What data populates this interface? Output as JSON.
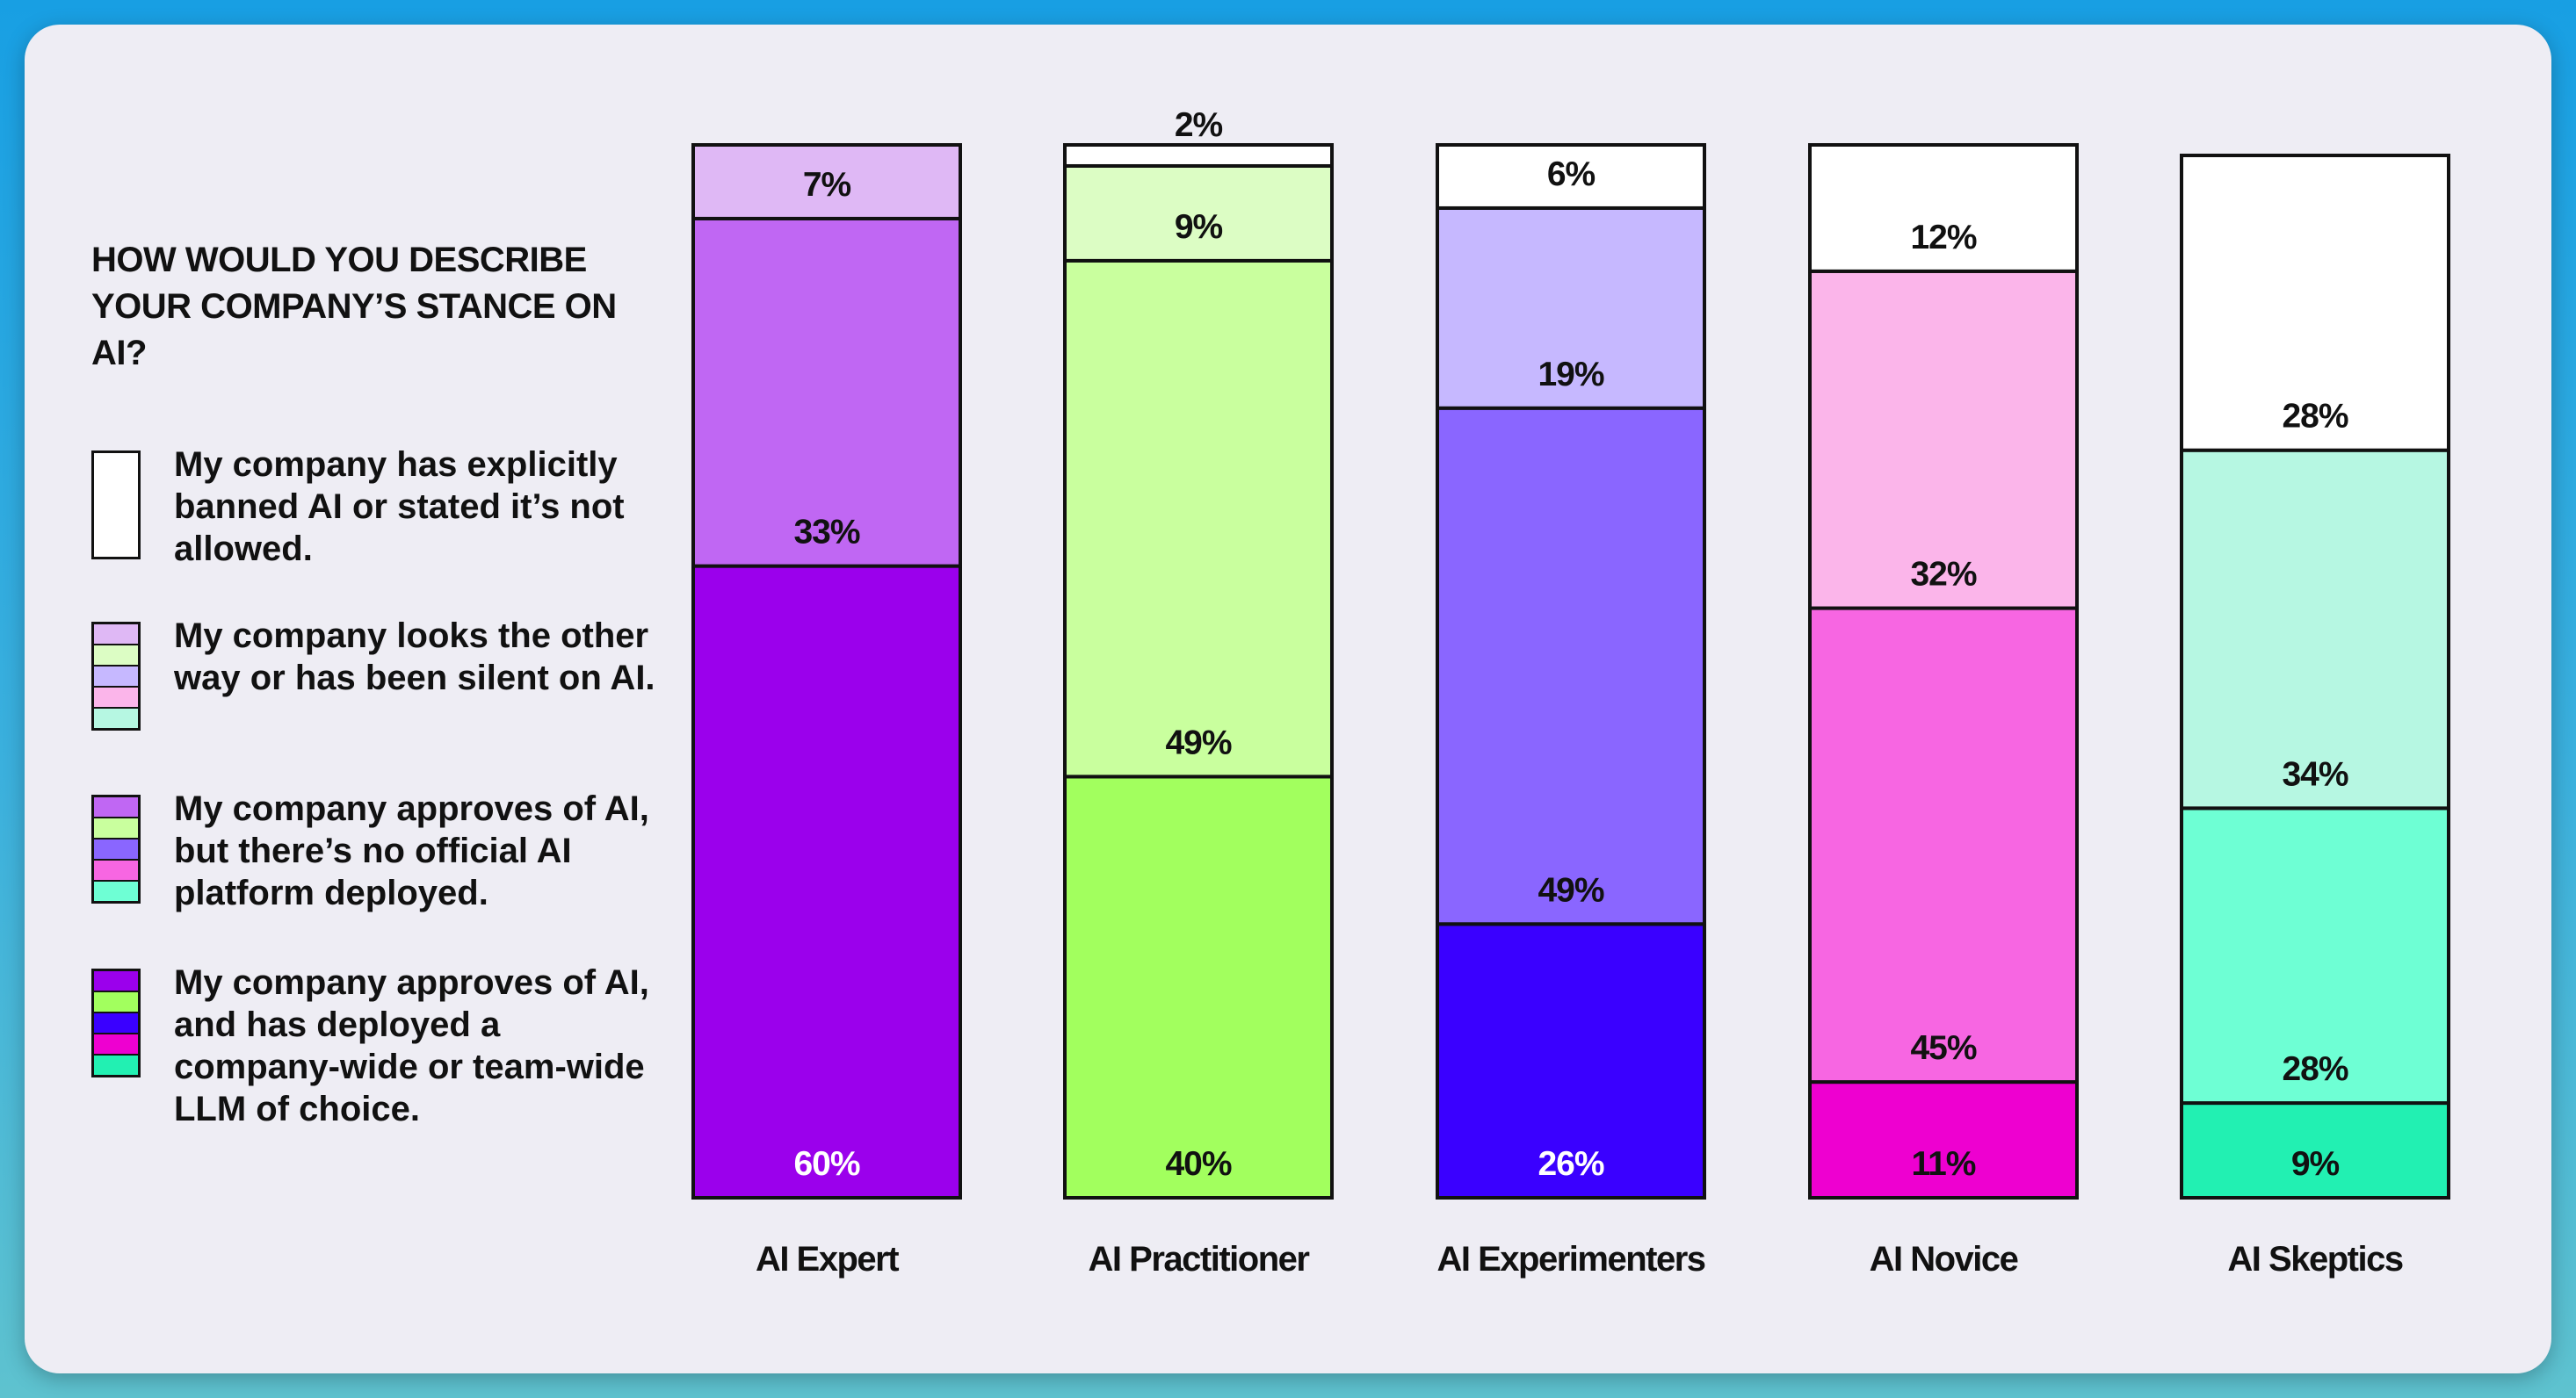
{
  "legend": {
    "title": "HOW WOULD YOU DESCRIBE YOUR COMPANY’S STANCE ON AI?",
    "items": [
      {
        "label": "My company has explicitly banned AI or stated it’s not allowed.",
        "swatches": [
          "#ffffff"
        ]
      },
      {
        "label": "My company looks the other way or has been silent on AI.",
        "swatches": [
          "#dfb8f5",
          "#dcfdc4",
          "#c6b8ff",
          "#fbb5ea",
          "#b6f7e2"
        ]
      },
      {
        "label": "My company approves of AI, but there’s no official AI platform deployed.",
        "swatches": [
          "#c067f3",
          "#c9ff9e",
          "#8a66ff",
          "#f766e2",
          "#6effd4"
        ]
      },
      {
        "label": "My company approves of AI, and has deployed a company-wide or team-wide LLM of choice.",
        "swatches": [
          "#9b00ec",
          "#a2ff5e",
          "#3a00ff",
          "#ee00d0",
          "#22f0b2"
        ]
      }
    ]
  },
  "chart_data": {
    "type": "bar",
    "stacked": true,
    "normalized": true,
    "ylim": [
      0,
      100
    ],
    "grid": false,
    "categories": [
      "AI Expert",
      "AI Practitioner",
      "AI Experimenters",
      "AI Novice",
      "AI Skeptics"
    ],
    "series": [
      {
        "name": "My company approves of AI, and has deployed a company-wide or team-wide LLM of choice.",
        "values": [
          60,
          40,
          26,
          11,
          9
        ],
        "labels": [
          "60%",
          "40%",
          "26%",
          "11%",
          "9%"
        ]
      },
      {
        "name": "My company approves of AI, but there’s no official AI platform deployed.",
        "values": [
          33,
          49,
          49,
          45,
          28
        ],
        "labels": [
          "33%",
          "49%",
          "49%",
          "45%",
          "28%"
        ]
      },
      {
        "name": "My company looks the other way or has been silent on AI.",
        "values": [
          7,
          9,
          19,
          32,
          34
        ],
        "labels": [
          "7%",
          "9%",
          "19%",
          "32%",
          "34%"
        ]
      },
      {
        "name": "My company has explicitly banned AI or stated it’s not allowed.",
        "values": [
          0,
          2,
          6,
          12,
          28
        ],
        "labels": [
          "",
          "2%",
          "6%",
          "12%",
          "28%"
        ]
      }
    ],
    "colors": [
      [
        "#9b00ec",
        "#c067f3",
        "#dfb8f5",
        "#ffffff"
      ],
      [
        "#a2ff5e",
        "#c9ff9e",
        "#dcfdc4",
        "#ffffff"
      ],
      [
        "#3a00ff",
        "#8a66ff",
        "#c6b8ff",
        "#ffffff"
      ],
      [
        "#ee00d0",
        "#f766e2",
        "#fbb5ea",
        "#ffffff"
      ],
      [
        "#22f0b2",
        "#6effd4",
        "#b6f7e2",
        "#ffffff"
      ]
    ],
    "label_colors": [
      [
        "#ffffff",
        "#111111",
        "#111111",
        "#111111"
      ],
      [
        "#111111",
        "#111111",
        "#111111",
        "#111111"
      ],
      [
        "#ffffff",
        "#111111",
        "#111111",
        "#111111"
      ],
      [
        "#111111",
        "#111111",
        "#111111",
        "#111111"
      ],
      [
        "#111111",
        "#111111",
        "#111111",
        "#111111"
      ]
    ]
  }
}
